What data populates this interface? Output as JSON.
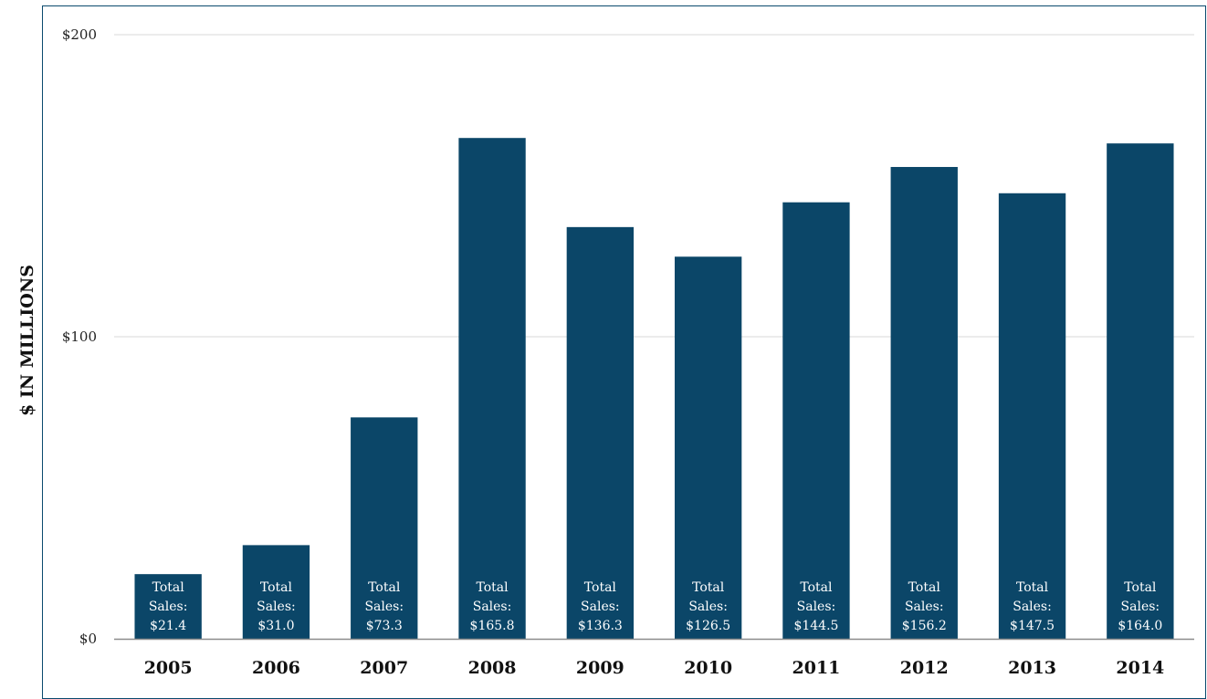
{
  "chart_data": {
    "type": "bar",
    "ylabel": "$ IN MILLIONS",
    "xlabel": "",
    "title": "",
    "ylim": [
      0,
      200
    ],
    "yticks": [
      {
        "value": 0,
        "label": "$0"
      },
      {
        "value": 100,
        "label": "$100"
      },
      {
        "value": 200,
        "label": "$200"
      }
    ],
    "categories": [
      "2005",
      "2006",
      "2007",
      "2008",
      "2009",
      "2010",
      "2011",
      "2012",
      "2013",
      "2014"
    ],
    "values": [
      21.4,
      31.0,
      73.3,
      165.8,
      136.3,
      126.5,
      144.5,
      156.2,
      147.5,
      164.0
    ],
    "data_labels": [
      [
        "Total",
        "Sales:",
        "$21.4"
      ],
      [
        "Total",
        "Sales:",
        "$31.0"
      ],
      [
        "Total",
        "Sales:",
        "$73.3"
      ],
      [
        "Total",
        "Sales:",
        "$165.8"
      ],
      [
        "Total",
        "Sales:",
        "$136.3"
      ],
      [
        "Total",
        "Sales:",
        "$126.5"
      ],
      [
        "Total",
        "Sales:",
        "$144.5"
      ],
      [
        "Total",
        "Sales:",
        "$156.2"
      ],
      [
        "Total",
        "Sales:",
        "$147.5"
      ],
      [
        "Total",
        "Sales:",
        "$164.0"
      ]
    ],
    "bar_color": "#0b4668",
    "grid_color": "#d9d9d9",
    "grid": true,
    "legend": "none"
  }
}
